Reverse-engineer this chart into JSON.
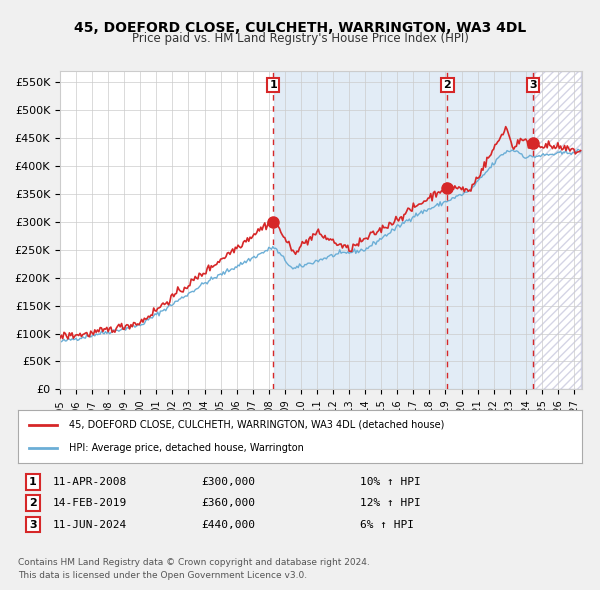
{
  "title": "45, DOEFORD CLOSE, CULCHETH, WARRINGTON, WA3 4DL",
  "subtitle": "Price paid vs. HM Land Registry's House Price Index (HPI)",
  "ylabel_ticks": [
    "£0",
    "£50K",
    "£100K",
    "£150K",
    "£200K",
    "£250K",
    "£300K",
    "£350K",
    "£400K",
    "£450K",
    "£500K",
    "£550K"
  ],
  "ytick_vals": [
    0,
    50000,
    100000,
    150000,
    200000,
    250000,
    300000,
    350000,
    400000,
    450000,
    500000,
    550000
  ],
  "ylim": [
    0,
    570000
  ],
  "xlim_start": 1995.0,
  "xlim_end": 2027.5,
  "sale1_date": 2008.27,
  "sale1_price": 300000,
  "sale1_label": "1",
  "sale1_text": "11-APR-2008",
  "sale1_price_text": "£300,000",
  "sale1_hpi": "10% ↑ HPI",
  "sale2_date": 2019.12,
  "sale2_price": 360000,
  "sale2_label": "2",
  "sale2_text": "14-FEB-2019",
  "sale2_price_text": "£360,000",
  "sale2_hpi": "12% ↑ HPI",
  "sale3_date": 2024.44,
  "sale3_price": 440000,
  "sale3_label": "3",
  "sale3_text": "11-JUN-2024",
  "sale3_price_text": "£440,000",
  "sale3_hpi": "6% ↑ HPI",
  "hpi_color": "#6baed6",
  "price_color": "#d62728",
  "shade_color": "#c6dbef",
  "vline_color": "#d62728",
  "background_color": "#f0f0f0",
  "plot_bg_color": "#ffffff",
  "legend_line1": "45, DOEFORD CLOSE, CULCHETH, WARRINGTON, WA3 4DL (detached house)",
  "legend_line2": "HPI: Average price, detached house, Warrington",
  "footer_line1": "Contains HM Land Registry data © Crown copyright and database right 2024.",
  "footer_line2": "This data is licensed under the Open Government Licence v3.0.",
  "xtick_years": [
    1995,
    1996,
    1997,
    1998,
    1999,
    2000,
    2001,
    2002,
    2003,
    2004,
    2005,
    2006,
    2007,
    2008,
    2009,
    2010,
    2011,
    2012,
    2013,
    2014,
    2015,
    2016,
    2017,
    2018,
    2019,
    2020,
    2021,
    2022,
    2023,
    2024,
    2025,
    2026,
    2027
  ]
}
